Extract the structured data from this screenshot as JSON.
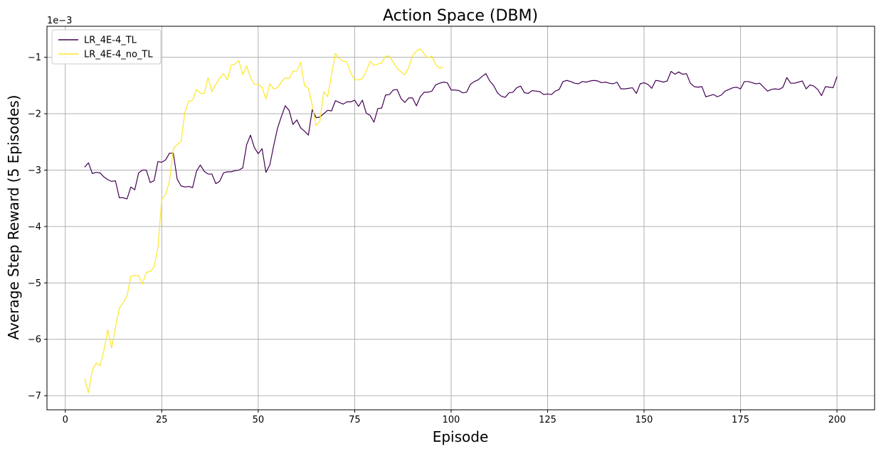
{
  "chart_data": {
    "type": "line",
    "title": "Action Space (DBM)",
    "xlabel": "Episode",
    "ylabel": "Average Step Reward (5 Episodes)",
    "y_offset_label": "1e−3",
    "xlim": [
      -4.75,
      209.75
    ],
    "ylim": [
      -7.25,
      -0.45
    ],
    "x_ticks": [
      0,
      25,
      50,
      75,
      100,
      125,
      150,
      175,
      200
    ],
    "x_tick_labels": [
      "0",
      "25",
      "50",
      "75",
      "100",
      "125",
      "150",
      "175",
      "200"
    ],
    "y_ticks": [
      -7,
      -6,
      -5,
      -4,
      -3,
      -2,
      -1
    ],
    "y_tick_labels": [
      "−7",
      "−6",
      "−5",
      "−4",
      "−3",
      "−2",
      "−1"
    ],
    "grid": true,
    "legend_position": "top-left",
    "series": [
      {
        "name": "LR_4E-4_TL",
        "color": "#440154",
        "x_start": 5,
        "values": [
          -2.95,
          -2.87,
          -3.06,
          -3.04,
          -3.05,
          -3.12,
          -3.17,
          -3.2,
          -3.19,
          -3.49,
          -3.49,
          -3.51,
          -3.3,
          -3.35,
          -3.05,
          -3.0,
          -3.0,
          -3.22,
          -3.19,
          -2.85,
          -2.86,
          -2.82,
          -2.7,
          -2.7,
          -3.16,
          -3.28,
          -3.3,
          -3.29,
          -3.31,
          -3.02,
          -2.91,
          -3.02,
          -3.07,
          -3.07,
          -3.24,
          -3.2,
          -3.05,
          -3.03,
          -3.03,
          -3.01,
          -3.0,
          -2.96,
          -2.55,
          -2.38,
          -2.6,
          -2.71,
          -2.62,
          -3.04,
          -2.91,
          -2.57,
          -2.26,
          -2.05,
          -1.86,
          -1.94,
          -2.19,
          -2.11,
          -2.25,
          -2.31,
          -2.38,
          -1.93,
          -2.07,
          -2.06,
          -2.0,
          -1.94,
          -1.95,
          -1.77,
          -1.8,
          -1.83,
          -1.79,
          -1.79,
          -1.76,
          -1.87,
          -1.76,
          -1.99,
          -2.03,
          -2.15,
          -1.91,
          -1.9,
          -1.67,
          -1.66,
          -1.58,
          -1.57,
          -1.73,
          -1.8,
          -1.72,
          -1.72,
          -1.86,
          -1.7,
          -1.62,
          -1.62,
          -1.6,
          -1.49,
          -1.46,
          -1.44,
          -1.45,
          -1.58,
          -1.58,
          -1.59,
          -1.63,
          -1.62,
          -1.48,
          -1.43,
          -1.4,
          -1.34,
          -1.29,
          -1.42,
          -1.5,
          -1.63,
          -1.69,
          -1.71,
          -1.63,
          -1.62,
          -1.54,
          -1.51,
          -1.63,
          -1.64,
          -1.59,
          -1.6,
          -1.61,
          -1.66,
          -1.65,
          -1.66,
          -1.6,
          -1.57,
          -1.43,
          -1.41,
          -1.43,
          -1.46,
          -1.47,
          -1.43,
          -1.44,
          -1.42,
          -1.41,
          -1.42,
          -1.45,
          -1.44,
          -1.46,
          -1.47,
          -1.44,
          -1.56,
          -1.56,
          -1.55,
          -1.54,
          -1.64,
          -1.47,
          -1.45,
          -1.48,
          -1.55,
          -1.41,
          -1.42,
          -1.44,
          -1.42,
          -1.25,
          -1.3,
          -1.26,
          -1.3,
          -1.29,
          -1.46,
          -1.52,
          -1.53,
          -1.52,
          -1.7,
          -1.68,
          -1.66,
          -1.7,
          -1.67,
          -1.6,
          -1.57,
          -1.54,
          -1.53,
          -1.56,
          -1.43,
          -1.43,
          -1.45,
          -1.47,
          -1.46,
          -1.53,
          -1.6,
          -1.57,
          -1.56,
          -1.57,
          -1.53,
          -1.36,
          -1.46,
          -1.46,
          -1.44,
          -1.42,
          -1.56,
          -1.49,
          -1.51,
          -1.57,
          -1.68,
          -1.52,
          -1.53,
          -1.54,
          -1.34
        ]
      },
      {
        "name": "LR_4E-4_no_TL",
        "color": "#fde725",
        "x_start": 5,
        "values": [
          -6.7,
          -6.95,
          -6.55,
          -6.42,
          -6.47,
          -6.2,
          -5.83,
          -6.15,
          -5.8,
          -5.45,
          -5.35,
          -5.23,
          -4.88,
          -4.87,
          -4.87,
          -5.02,
          -4.81,
          -4.8,
          -4.72,
          -4.38,
          -3.52,
          -3.43,
          -3.2,
          -2.62,
          -2.55,
          -2.49,
          -1.97,
          -1.78,
          -1.76,
          -1.57,
          -1.64,
          -1.64,
          -1.36,
          -1.61,
          -1.48,
          -1.37,
          -1.29,
          -1.4,
          -1.14,
          -1.12,
          -1.06,
          -1.31,
          -1.15,
          -1.36,
          -1.48,
          -1.48,
          -1.53,
          -1.74,
          -1.47,
          -1.56,
          -1.54,
          -1.44,
          -1.36,
          -1.38,
          -1.25,
          -1.24,
          -1.09,
          -1.5,
          -1.55,
          -1.85,
          -2.21,
          -2.13,
          -1.61,
          -1.7,
          -1.3,
          -0.93,
          -1.02,
          -1.07,
          -1.08,
          -1.28,
          -1.4,
          -1.4,
          -1.38,
          -1.25,
          -1.07,
          -1.14,
          -1.12,
          -1.1,
          -0.98,
          -0.98,
          -1.09,
          -1.19,
          -1.26,
          -1.31,
          -1.18,
          -0.97,
          -0.89,
          -0.85,
          -0.94,
          -1.01,
          -0.98,
          -1.13,
          -1.19,
          -1.18
        ]
      }
    ]
  }
}
